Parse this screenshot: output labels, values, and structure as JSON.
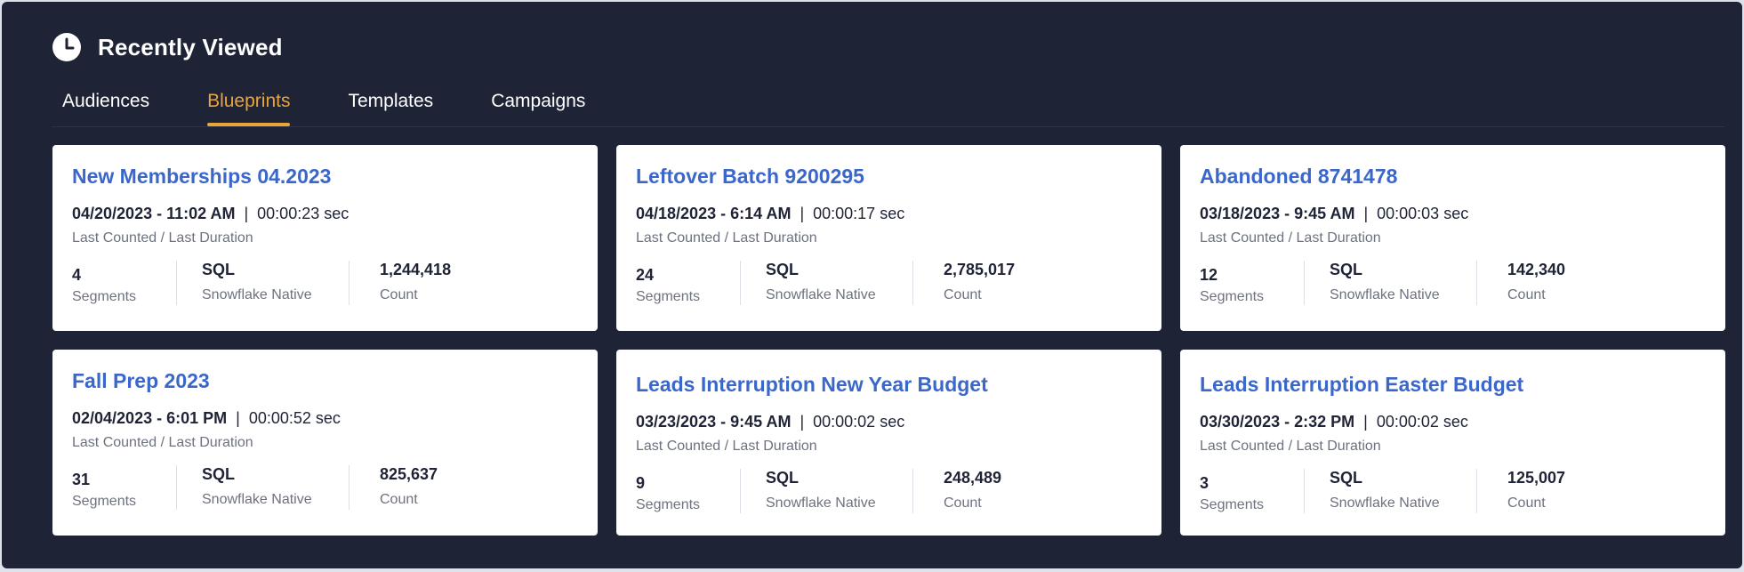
{
  "header": {
    "title": "Recently Viewed",
    "icon": "clock-icon"
  },
  "tabs": [
    {
      "label": "Audiences",
      "active": false
    },
    {
      "label": "Blueprints",
      "active": true
    },
    {
      "label": "Templates",
      "active": false
    },
    {
      "label": "Campaigns",
      "active": false
    }
  ],
  "colors": {
    "background": "#1f2336",
    "accent": "#e9a43a",
    "link": "#3a67c9"
  },
  "labels": {
    "last": "Last Counted / Last Duration",
    "segments": "Segments",
    "engine": "Snowflake Native",
    "count": "Count",
    "separator": "|"
  },
  "cards": [
    {
      "title": "New Memberships 04.2023",
      "date": "04/20/2023 - 11:02 AM",
      "duration": "00:00:23 sec",
      "segments": "4",
      "type": "SQL",
      "count": "1,244,418"
    },
    {
      "title": "Leftover Batch 9200295",
      "date": "04/18/2023 - 6:14 AM",
      "duration": "00:00:17 sec",
      "segments": "24",
      "type": "SQL",
      "count": "2,785,017"
    },
    {
      "title": "Abandoned 8741478",
      "date": "03/18/2023 - 9:45 AM",
      "duration": "00:00:03 sec",
      "segments": "12",
      "type": "SQL",
      "count": "142,340"
    },
    {
      "title": "Fall Prep 2023",
      "date": "02/04/2023 - 6:01 PM",
      "duration": "00:00:52 sec",
      "segments": "31",
      "type": "SQL",
      "count": "825,637"
    },
    {
      "title": "Leads Interruption New Year Budget",
      "date": "03/23/2023 - 9:45 AM",
      "duration": "00:00:02 sec",
      "segments": "9",
      "type": "SQL",
      "count": "248,489"
    },
    {
      "title": "Leads Interruption Easter Budget",
      "date": "03/30/2023 - 2:32 PM",
      "duration": "00:00:02 sec",
      "segments": "3",
      "type": "SQL",
      "count": "125,007"
    }
  ]
}
